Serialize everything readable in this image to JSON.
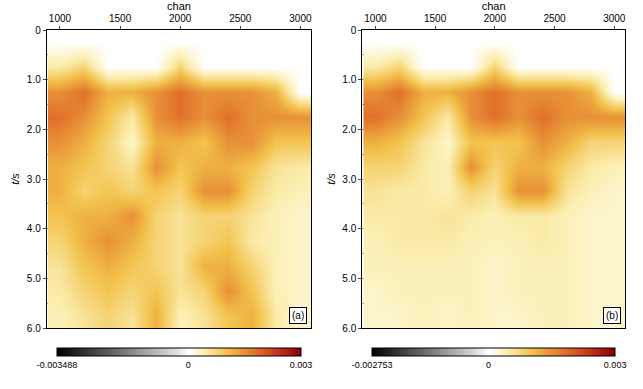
{
  "chart_data": [
    {
      "type": "heatmap",
      "panel_label": "(a)",
      "x_label": "chan",
      "y_label": "t/s",
      "x": [
        1000,
        1200,
        1400,
        1600,
        1800,
        2000,
        2200,
        2400,
        2600,
        2800,
        3000
      ],
      "y": [
        0.25,
        0.75,
        1.25,
        1.75,
        2.25,
        2.75,
        3.25,
        3.75,
        4.25,
        4.75,
        5.25,
        5.75
      ],
      "cells": [
        [
          0,
          0,
          0,
          0,
          0,
          0,
          0,
          0,
          0,
          0,
          0
        ],
        [
          0.0005,
          0.0008,
          0,
          0,
          0,
          0.0008,
          0,
          0,
          0,
          0,
          0
        ],
        [
          0.0015,
          0.0018,
          0.0012,
          0.0012,
          0.0015,
          0.0018,
          0.0015,
          0.0015,
          0.0015,
          0.0012,
          0
        ],
        [
          0.0018,
          0.0015,
          0.001,
          0.0005,
          0.0015,
          0.0018,
          0.0015,
          0.0018,
          0.0015,
          0.0015,
          0.0015
        ],
        [
          0.0015,
          0.0012,
          0.0008,
          0.0003,
          0.0012,
          0.0012,
          0.001,
          0.0015,
          0.0015,
          0.001,
          0.001
        ],
        [
          0.0012,
          0.001,
          0.0008,
          0.0006,
          0.0015,
          0.001,
          0.0012,
          0.0012,
          0.001,
          0.0006,
          0.0005
        ],
        [
          0.0012,
          0.0008,
          0.001,
          0.0008,
          0.001,
          0.0008,
          0.0015,
          0.0015,
          0.0008,
          0.0005,
          0.0004
        ],
        [
          0.001,
          0.0012,
          0.0012,
          0.0015,
          0.0008,
          0.0006,
          0.0008,
          0.0008,
          0.0006,
          0.0004,
          0.0003
        ],
        [
          0.0008,
          0.0012,
          0.0015,
          0.0012,
          0.0008,
          0.0006,
          0.0008,
          0.001,
          0.0005,
          0.0004,
          0.0003
        ],
        [
          0.0006,
          0.001,
          0.0012,
          0.001,
          0.0008,
          0.0006,
          0.0012,
          0.0012,
          0.0008,
          0.0004,
          0.0003
        ],
        [
          0.0005,
          0.0008,
          0.001,
          0.0008,
          0.001,
          0.0006,
          0.0008,
          0.0015,
          0.001,
          0.0004,
          0.0003
        ],
        [
          0.0004,
          0.0006,
          0.0008,
          0.0006,
          0.0012,
          0.0004,
          0.0006,
          0.001,
          0.0012,
          0.0005,
          0.0003
        ]
      ],
      "xlim": [
        890,
        3090
      ],
      "xticks": [
        1000,
        1500,
        2000,
        2500,
        3000
      ],
      "ylim": [
        0,
        6
      ],
      "yticks": [
        0,
        {
          "value": 1,
          "label": "1.0"
        },
        {
          "value": 2,
          "label": "2.0"
        },
        {
          "value": 3,
          "label": "3.0"
        },
        {
          "value": 4,
          "label": "4.0"
        },
        {
          "value": 5,
          "label": "5.0"
        },
        {
          "value": 6,
          "label": "6.0"
        }
      ],
      "zlim": [
        -0.003488,
        0.003
      ],
      "zticks": [
        -0.003488,
        0,
        0.003
      ],
      "grid": true
    },
    {
      "type": "heatmap",
      "panel_label": "(b)",
      "x_label": "chan",
      "y_label": "t/s",
      "x": [
        1000,
        1200,
        1400,
        1600,
        1800,
        2000,
        2200,
        2400,
        2600,
        2800,
        3000
      ],
      "y": [
        0.25,
        0.75,
        1.25,
        1.75,
        2.25,
        2.75,
        3.25,
        3.75,
        4.25,
        4.75,
        5.25,
        5.75
      ],
      "cells": [
        [
          0,
          0,
          0,
          0,
          0,
          0,
          0,
          0,
          0,
          0,
          0
        ],
        [
          0.0005,
          0.0008,
          0,
          0,
          0,
          0.0008,
          0,
          0,
          0,
          0,
          0
        ],
        [
          0.0015,
          0.0018,
          0.0012,
          0.0012,
          0.0015,
          0.0018,
          0.0015,
          0.0015,
          0.0015,
          0.0012,
          0
        ],
        [
          0.0018,
          0.0015,
          0.001,
          0.0005,
          0.0015,
          0.0018,
          0.0015,
          0.0018,
          0.0015,
          0.0015,
          0.0015
        ],
        [
          0.0012,
          0.001,
          0.0006,
          0.0003,
          0.001,
          0.001,
          0.001,
          0.0015,
          0.0012,
          0.0008,
          0.0008
        ],
        [
          0.0008,
          0.0008,
          0.0005,
          0.0004,
          0.0015,
          0.0008,
          0.0012,
          0.0012,
          0.0008,
          0.0005,
          0.0004
        ],
        [
          0.0006,
          0.0005,
          0.0005,
          0.0004,
          0.0008,
          0.0006,
          0.0015,
          0.0015,
          0.0006,
          0.0004,
          0.0003
        ],
        [
          0.0005,
          0.0005,
          0.0005,
          0.0006,
          0.0005,
          0.0004,
          0.0005,
          0.0005,
          0.0004,
          0.0003,
          0.0003
        ],
        [
          0.0004,
          0.0005,
          0.0005,
          0.0005,
          0.0004,
          0.0004,
          0.0004,
          0.0005,
          0.0004,
          0.0003,
          0.0003
        ],
        [
          0.0004,
          0.0004,
          0.0004,
          0.0004,
          0.0004,
          0.0003,
          0.0004,
          0.0004,
          0.0004,
          0.0003,
          0.0003
        ],
        [
          0.0003,
          0.0004,
          0.0004,
          0.0004,
          0.0004,
          0.0003,
          0.0004,
          0.0004,
          0.0004,
          0.0003,
          0.0003
        ],
        [
          0.0003,
          0.0003,
          0.0004,
          0.0003,
          0.0004,
          0.0003,
          0.0003,
          0.0004,
          0.0004,
          0.0003,
          0.0003
        ]
      ],
      "xlim": [
        890,
        3090
      ],
      "xticks": [
        1000,
        1500,
        2000,
        2500,
        3000
      ],
      "ylim": [
        0,
        6
      ],
      "yticks": [
        0,
        {
          "value": 1,
          "label": "1.0"
        },
        {
          "value": 2,
          "label": "2.0"
        },
        {
          "value": 3,
          "label": "3.0"
        },
        {
          "value": 4,
          "label": "4.0"
        },
        {
          "value": 5,
          "label": "5.0"
        },
        {
          "value": 6,
          "label": "6.0"
        }
      ],
      "zlim": [
        -0.002753,
        0.003
      ],
      "zticks": [
        -0.002753,
        0,
        0.003
      ],
      "grid": true
    }
  ]
}
